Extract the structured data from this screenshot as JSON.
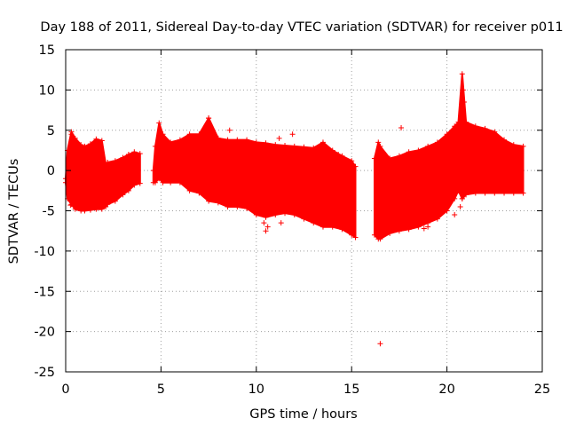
{
  "chart_data": {
    "type": "scatter",
    "title": "Day 188 of 2011, Sidereal Day-to-day VTEC variation (SDTVAR) for receiver p011",
    "xlabel": "GPS time / hours",
    "ylabel": "SDTVAR / TECUs",
    "xlim": [
      0,
      25
    ],
    "ylim": [
      -25,
      15
    ],
    "x_ticks": [
      0,
      5,
      10,
      15,
      20,
      25
    ],
    "y_ticks": [
      -25,
      -20,
      -15,
      -10,
      -5,
      0,
      5,
      10,
      15
    ],
    "grid": true,
    "marker": "+",
    "series_color": "#ff0000",
    "series": [
      {
        "name": "SDTVAR",
        "segments": [
          {
            "x": [
              0.0,
              0.1,
              0.3,
              0.5,
              0.8,
              1.0,
              1.3,
              1.6,
              1.9,
              2.1,
              2.2,
              2.6,
              3.0,
              3.3,
              3.6,
              3.9
            ],
            "y_upper": [
              -1.0,
              2.5,
              4.8,
              4.0,
              3.2,
              3.0,
              3.3,
              3.9,
              3.7,
              0.8,
              1.0,
              1.2,
              1.6,
              2.0,
              2.3,
              2.1
            ],
            "y_lower": [
              -1.5,
              -3.5,
              -4.2,
              -4.8,
              -5.0,
              -5.0,
              -4.9,
              -4.8,
              -4.8,
              -4.5,
              -4.2,
              -3.8,
              -3.0,
              -2.5,
              -1.8,
              -1.6
            ]
          },
          {
            "x": [
              4.6,
              4.7,
              4.9,
              5.1,
              5.5,
              6.0,
              6.5,
              7.0,
              7.5,
              8.0,
              8.5,
              9.0,
              9.5,
              10.0,
              10.5,
              11.0,
              11.5,
              12.0,
              12.5,
              13.0,
              13.5,
              14.0,
              14.5,
              15.0,
              15.2
            ],
            "y_upper": [
              0.0,
              3.0,
              5.9,
              4.5,
              3.5,
              3.8,
              4.5,
              4.5,
              6.5,
              4.0,
              3.8,
              3.8,
              3.8,
              3.5,
              3.4,
              3.2,
              3.1,
              3.0,
              2.9,
              2.8,
              3.5,
              2.5,
              1.8,
              1.2,
              0.5
            ],
            "y_lower": [
              -1.5,
              -1.5,
              -1.0,
              -1.5,
              -1.5,
              -1.5,
              -2.5,
              -2.8,
              -3.8,
              -4.0,
              -4.5,
              -4.5,
              -4.7,
              -5.5,
              -5.8,
              -5.5,
              -5.3,
              -5.5,
              -6.0,
              -6.5,
              -7.0,
              -7.0,
              -7.3,
              -8.0,
              -8.3
            ]
          },
          {
            "x": [
              16.2,
              16.4,
              16.5,
              17.0,
              17.5,
              18.0,
              18.5,
              19.0,
              19.5,
              20.0,
              20.4,
              20.6,
              20.8,
              21.0,
              21.5,
              22.0,
              22.5,
              23.0,
              23.5,
              24.0
            ],
            "y_upper": [
              1.5,
              3.5,
              3.0,
              1.5,
              1.8,
              2.3,
              2.5,
              3.0,
              3.5,
              4.5,
              5.5,
              6.0,
              12.0,
              6.0,
              5.5,
              5.2,
              4.8,
              3.8,
              3.2,
              3.0
            ],
            "y_lower": [
              -8.0,
              -8.5,
              -8.5,
              -7.8,
              -7.5,
              -7.3,
              -7.0,
              -6.5,
              -6.0,
              -5.0,
              -3.5,
              -2.5,
              -3.5,
              -3.0,
              -2.8,
              -2.8,
              -2.8,
              -2.8,
              -2.8,
              -2.8
            ]
          }
        ],
        "outliers": [
          {
            "x": 0.3,
            "y": 4.5
          },
          {
            "x": 0.25,
            "y": -4.3
          },
          {
            "x": 1.0,
            "y": -2.0
          },
          {
            "x": 7.5,
            "y": 6.5
          },
          {
            "x": 8.6,
            "y": 5.0
          },
          {
            "x": 10.4,
            "y": -6.5
          },
          {
            "x": 10.5,
            "y": -7.5
          },
          {
            "x": 10.6,
            "y": -7.0
          },
          {
            "x": 11.2,
            "y": 4.0
          },
          {
            "x": 11.3,
            "y": -6.5
          },
          {
            "x": 11.9,
            "y": 4.5
          },
          {
            "x": 14.3,
            "y": 2.0
          },
          {
            "x": 16.5,
            "y": -21.5
          },
          {
            "x": 17.6,
            "y": 5.3
          },
          {
            "x": 18.8,
            "y": -7.2
          },
          {
            "x": 19.0,
            "y": -7.0
          },
          {
            "x": 20.4,
            "y": -5.5
          },
          {
            "x": 20.7,
            "y": -4.5
          },
          {
            "x": 20.8,
            "y": -3.5
          },
          {
            "x": 20.85,
            "y": 10.0
          },
          {
            "x": 20.9,
            "y": 8.5
          },
          {
            "x": 23.4,
            "y": 2.8
          }
        ]
      }
    ]
  }
}
